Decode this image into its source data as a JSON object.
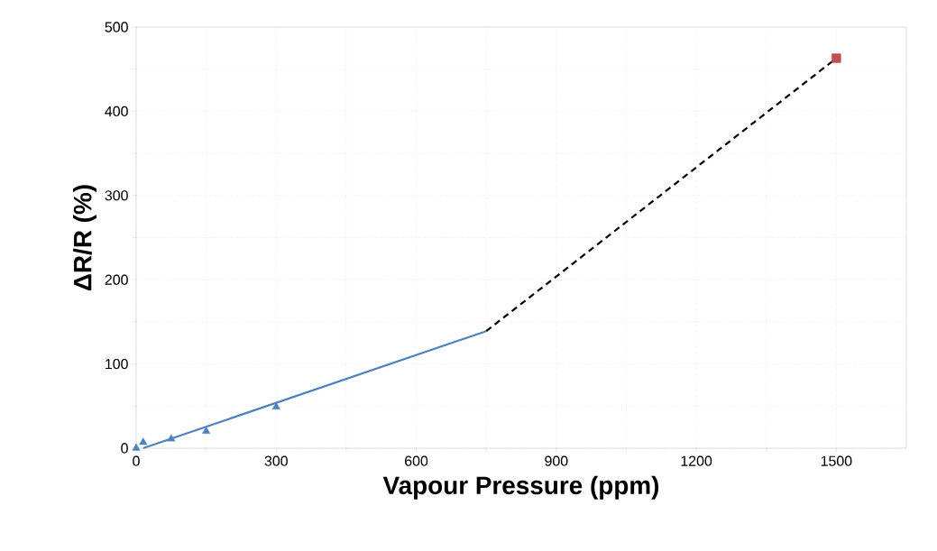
{
  "chart_data": {
    "type": "scatter",
    "xlabel": "Vapour Pressure (ppm)",
    "ylabel": "ΔR/R (%)",
    "xlim": [
      0,
      1650
    ],
    "ylim": [
      0,
      500
    ],
    "xticks": [
      0,
      {
        "value": 150,
        "label": null
      },
      300,
      {
        "value": 450,
        "label": null
      },
      600,
      {
        "value": 750,
        "label": null
      },
      900,
      {
        "value": 1050,
        "label": null
      },
      1200,
      {
        "value": 1350,
        "label": null
      },
      1500
    ],
    "yticks": [
      0,
      {
        "value": 50,
        "label": null
      },
      100,
      {
        "value": 150,
        "label": null
      },
      200,
      {
        "value": 250,
        "label": null
      },
      300,
      {
        "value": 350,
        "label": null
      },
      400,
      {
        "value": 450,
        "label": null
      },
      500
    ],
    "grid": true,
    "series": [
      {
        "color": "#4f81bd",
        "marker": "triangle",
        "x": [
          0,
          15,
          75,
          150,
          300
        ],
        "values": [
          0,
          7,
          11,
          20,
          49
        ]
      },
      {
        "type": "line",
        "color": "#4f81bd",
        "line_style": "solid",
        "marker": "none",
        "x": [
          15,
          750
        ],
        "values": [
          0,
          139
        ]
      },
      {
        "type": "line",
        "color": "#000000",
        "line_style": "dashed",
        "marker": "none",
        "x": [
          750,
          1500
        ],
        "values": [
          139,
          463
        ]
      },
      {
        "color": "#c0504d",
        "marker": "square",
        "x": [
          1500
        ],
        "values": [
          463
        ]
      }
    ]
  }
}
